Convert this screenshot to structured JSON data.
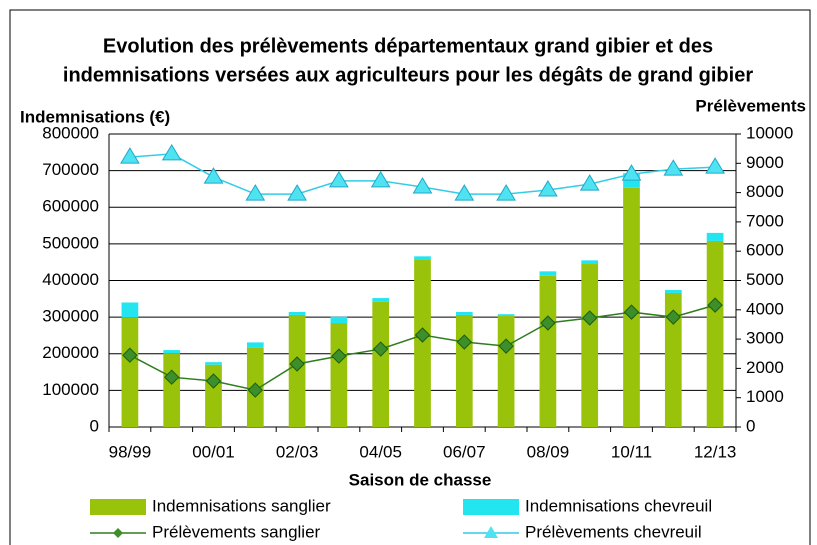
{
  "chart_data": {
    "type": "bar",
    "title": [
      "Evolution des prélèvements départementaux grand gibier et des",
      "indemnisations versées aux agriculteurs pour les dégâts de grand gibier"
    ],
    "y_label": "Indemnisations (€)",
    "y2_label": "Prélèvements",
    "x_label": "Saison de chasse",
    "categories": [
      "98/99",
      null,
      "00/01",
      null,
      "02/03",
      null,
      "04/05",
      null,
      "06/07",
      null,
      "08/09",
      null,
      "10/11",
      null,
      "12/13"
    ],
    "stacked": true,
    "grid": true,
    "legend": "bottom",
    "ylim": [
      0,
      800000
    ],
    "yticks": [
      0,
      100000,
      200000,
      300000,
      400000,
      500000,
      600000,
      700000,
      800000
    ],
    "y2lim": [
      0,
      10000
    ],
    "y2ticks": [
      0,
      1000,
      2000,
      3000,
      4000,
      5000,
      6000,
      7000,
      8000,
      9000,
      10000
    ],
    "series": [
      {
        "name": "Indemnisations sanglier",
        "type": "bar",
        "color": "#99c20a",
        "values": [
          300000,
          200000,
          170000,
          216000,
          306000,
          284000,
          342000,
          456000,
          306000,
          303000,
          413000,
          445000,
          653000,
          366000,
          508000
        ]
      },
      {
        "name": "Indemnisations chevreuil",
        "type": "bar",
        "color": "#22e5f0",
        "values": [
          40000,
          10000,
          7000,
          15000,
          8000,
          17000,
          10000,
          10000,
          8000,
          5000,
          12000,
          10000,
          40000,
          8000,
          22000
        ]
      },
      {
        "name": "Prélèvements sanglier",
        "type": "line",
        "axis": "y2",
        "marker": "diamond",
        "color": "#2e7d1e",
        "values": [
          2450,
          1700,
          1570,
          1260,
          2150,
          2420,
          2660,
          3140,
          2900,
          2760,
          3550,
          3720,
          3920,
          3750,
          4160
        ]
      },
      {
        "name": "Prélèvements chevreuil",
        "type": "line",
        "axis": "y2",
        "marker": "triangle",
        "color": "#33cce8",
        "values": [
          9210,
          9320,
          8530,
          7950,
          7950,
          8400,
          8400,
          8190,
          7950,
          7950,
          8090,
          8290,
          8630,
          8800,
          8870
        ]
      }
    ]
  }
}
